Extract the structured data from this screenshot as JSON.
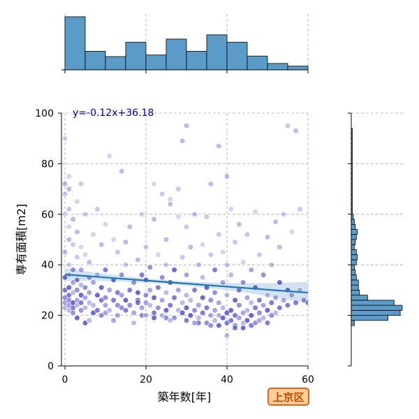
{
  "chart_data": {
    "type": "scatter",
    "title": "",
    "xlabel": "築年数[年]",
    "ylabel": "専有面積[m2]",
    "xlim": [
      0,
      60
    ],
    "ylim": [
      0,
      100
    ],
    "xticks": [
      0,
      20,
      40,
      60
    ],
    "yticks": [
      0,
      20,
      40,
      60,
      80,
      100
    ],
    "grid": true,
    "regression": {
      "slope": -0.12,
      "intercept": 36.18,
      "label": "y=-0.12x+36.18"
    },
    "badge": "上京区",
    "colors": {
      "points": "#3a3ac8",
      "regression": "#1f77b4",
      "ci_band": "#c6dbef",
      "hist": "#5b9bc8"
    },
    "x_hist": {
      "bin_edges": [
        0,
        5,
        10,
        15,
        20,
        25,
        30,
        35,
        40,
        45,
        50,
        55,
        60
      ],
      "counts": [
        100,
        35,
        25,
        52,
        28,
        58,
        35,
        66,
        52,
        26,
        12,
        7
      ]
    },
    "y_hist": {
      "bin_edges": [
        16,
        18,
        20,
        22,
        24,
        26,
        28,
        30,
        32,
        34,
        36,
        38,
        40,
        42,
        44,
        46,
        48,
        50,
        52,
        54,
        56,
        58,
        60,
        62,
        64,
        66,
        68,
        70,
        72,
        74,
        76,
        78,
        80,
        82,
        84,
        86,
        88,
        90,
        92,
        94
      ],
      "counts": [
        3,
        36,
        48,
        50,
        42,
        16,
        8,
        7,
        7,
        5,
        4,
        3,
        5,
        6,
        5,
        3,
        4,
        5,
        6,
        4,
        3,
        2,
        1,
        1,
        1,
        1,
        1,
        1,
        1,
        1,
        1,
        1,
        1,
        1,
        1,
        1,
        1,
        1,
        1
      ]
    },
    "points": [
      [
        0,
        23
      ],
      [
        0,
        25
      ],
      [
        0,
        27
      ],
      [
        0,
        30
      ],
      [
        0,
        35
      ],
      [
        0,
        45
      ],
      [
        0,
        60
      ],
      [
        0,
        68
      ],
      [
        0,
        72
      ],
      [
        0,
        90
      ],
      [
        1,
        22
      ],
      [
        1,
        24
      ],
      [
        1,
        26
      ],
      [
        1,
        28
      ],
      [
        1,
        31
      ],
      [
        1,
        36
      ],
      [
        1,
        40
      ],
      [
        1,
        50
      ],
      [
        1,
        55
      ],
      [
        1,
        62
      ],
      [
        1,
        70
      ],
      [
        1,
        75
      ],
      [
        2,
        21
      ],
      [
        2,
        23
      ],
      [
        2,
        25
      ],
      [
        2,
        29
      ],
      [
        2,
        33
      ],
      [
        2,
        38
      ],
      [
        2,
        48
      ],
      [
        2,
        58
      ],
      [
        3,
        24
      ],
      [
        3,
        26
      ],
      [
        3,
        30
      ],
      [
        3,
        34
      ],
      [
        3,
        43
      ],
      [
        3,
        53
      ],
      [
        3,
        65
      ],
      [
        4,
        22
      ],
      [
        4,
        25
      ],
      [
        4,
        28
      ],
      [
        4,
        32
      ],
      [
        4,
        38
      ],
      [
        4,
        47
      ],
      [
        4,
        72
      ],
      [
        5,
        17
      ],
      [
        5,
        23
      ],
      [
        5,
        27
      ],
      [
        5,
        31
      ],
      [
        5,
        44
      ],
      [
        5,
        60
      ],
      [
        6,
        25
      ],
      [
        6,
        29
      ],
      [
        6,
        35
      ],
      [
        6,
        41
      ],
      [
        7,
        21
      ],
      [
        7,
        24
      ],
      [
        7,
        33
      ],
      [
        7,
        52
      ],
      [
        8,
        22
      ],
      [
        8,
        28
      ],
      [
        8,
        36
      ],
      [
        8,
        62
      ],
      [
        9,
        20
      ],
      [
        9,
        26
      ],
      [
        9,
        31
      ],
      [
        9,
        48
      ],
      [
        10,
        24
      ],
      [
        10,
        27
      ],
      [
        10,
        38
      ],
      [
        10,
        56
      ],
      [
        11,
        22
      ],
      [
        11,
        30
      ],
      [
        11,
        83
      ],
      [
        12,
        26
      ],
      [
        12,
        34
      ],
      [
        12,
        50
      ],
      [
        13,
        20
      ],
      [
        13,
        24
      ],
      [
        13,
        29
      ],
      [
        13,
        45
      ],
      [
        14,
        77
      ],
      [
        14,
        28
      ],
      [
        14,
        36
      ],
      [
        15,
        22
      ],
      [
        15,
        26
      ],
      [
        15,
        40
      ],
      [
        15,
        49
      ],
      [
        16,
        24
      ],
      [
        16,
        30
      ],
      [
        16,
        55
      ],
      [
        17,
        17
      ],
      [
        17,
        21
      ],
      [
        17,
        33
      ],
      [
        18,
        26
      ],
      [
        18,
        29
      ],
      [
        18,
        42
      ],
      [
        19,
        23
      ],
      [
        19,
        20
      ],
      [
        19,
        36
      ],
      [
        19,
        60
      ],
      [
        20,
        20
      ],
      [
        20,
        25
      ],
      [
        20,
        28
      ],
      [
        20,
        47
      ],
      [
        20,
        34
      ],
      [
        21,
        24
      ],
      [
        21,
        30
      ],
      [
        21,
        39
      ],
      [
        22,
        21
      ],
      [
        22,
        27
      ],
      [
        22,
        58
      ],
      [
        22,
        72
      ],
      [
        23,
        23
      ],
      [
        23,
        31
      ],
      [
        23,
        44
      ],
      [
        24,
        20
      ],
      [
        24,
        26
      ],
      [
        24,
        35
      ],
      [
        24,
        68
      ],
      [
        25,
        22
      ],
      [
        25,
        29
      ],
      [
        25,
        40
      ],
      [
        25,
        50
      ],
      [
        26,
        24
      ],
      [
        26,
        33
      ],
      [
        26,
        64
      ],
      [
        26,
        66
      ],
      [
        27,
        19
      ],
      [
        27,
        27
      ],
      [
        27,
        38
      ],
      [
        28,
        22
      ],
      [
        28,
        30
      ],
      [
        28,
        59
      ],
      [
        28,
        70
      ],
      [
        29,
        21
      ],
      [
        29,
        25
      ],
      [
        29,
        43
      ],
      [
        29,
        89
      ],
      [
        30,
        18
      ],
      [
        30,
        23
      ],
      [
        30,
        28
      ],
      [
        30,
        36
      ],
      [
        30,
        55
      ],
      [
        30,
        95
      ],
      [
        31,
        20
      ],
      [
        31,
        26
      ],
      [
        31,
        47
      ],
      [
        32,
        22
      ],
      [
        32,
        30
      ],
      [
        32,
        60
      ],
      [
        33,
        19
      ],
      [
        33,
        24
      ],
      [
        33,
        40
      ],
      [
        34,
        21
      ],
      [
        34,
        27
      ],
      [
        34,
        35
      ],
      [
        34,
        48
      ],
      [
        35,
        17
      ],
      [
        35,
        23
      ],
      [
        35,
        31
      ],
      [
        35,
        59
      ],
      [
        36,
        20
      ],
      [
        36,
        26
      ],
      [
        36,
        44
      ],
      [
        36,
        72
      ],
      [
        37,
        18
      ],
      [
        37,
        22
      ],
      [
        37,
        29
      ],
      [
        37,
        38
      ],
      [
        38,
        16
      ],
      [
        38,
        20
      ],
      [
        38,
        25
      ],
      [
        38,
        52
      ],
      [
        38,
        87
      ],
      [
        39,
        19
      ],
      [
        39,
        23
      ],
      [
        39,
        33
      ],
      [
        39,
        45
      ],
      [
        40,
        17
      ],
      [
        40,
        21
      ],
      [
        40,
        28
      ],
      [
        40,
        40
      ],
      [
        40,
        75
      ],
      [
        41,
        18
      ],
      [
        41,
        22
      ],
      [
        41,
        36
      ],
      [
        41,
        62
      ],
      [
        42,
        16
      ],
      [
        42,
        20
      ],
      [
        42,
        26
      ],
      [
        42,
        49
      ],
      [
        43,
        19
      ],
      [
        43,
        24
      ],
      [
        43,
        30
      ],
      [
        43,
        56
      ],
      [
        44,
        17
      ],
      [
        44,
        21
      ],
      [
        44,
        33
      ],
      [
        44,
        41
      ],
      [
        45,
        18
      ],
      [
        45,
        22
      ],
      [
        45,
        27
      ],
      [
        45,
        52
      ],
      [
        46,
        16
      ],
      [
        46,
        20
      ],
      [
        46,
        25
      ],
      [
        46,
        38
      ],
      [
        47,
        17
      ],
      [
        47,
        23
      ],
      [
        47,
        31
      ],
      [
        47,
        61
      ],
      [
        48,
        18
      ],
      [
        48,
        21
      ],
      [
        48,
        26
      ],
      [
        48,
        44
      ],
      [
        49,
        19
      ],
      [
        49,
        24
      ],
      [
        49,
        36
      ],
      [
        50,
        17
      ],
      [
        50,
        22
      ],
      [
        50,
        28
      ],
      [
        50,
        51
      ],
      [
        51,
        20
      ],
      [
        51,
        25
      ],
      [
        51,
        40
      ],
      [
        52,
        21
      ],
      [
        52,
        27
      ],
      [
        52,
        57
      ],
      [
        53,
        23
      ],
      [
        53,
        33
      ],
      [
        53,
        47
      ],
      [
        54,
        26
      ],
      [
        54,
        60
      ],
      [
        55,
        24
      ],
      [
        55,
        30
      ],
      [
        55,
        95
      ],
      [
        56,
        28
      ],
      [
        56,
        53
      ],
      [
        57,
        25
      ],
      [
        57,
        93
      ],
      [
        58,
        30
      ],
      [
        58,
        62
      ],
      [
        59,
        26
      ],
      [
        60,
        25
      ],
      [
        3,
        19
      ],
      [
        6,
        18
      ],
      [
        12,
        18
      ],
      [
        25,
        19
      ],
      [
        33,
        17
      ],
      [
        44,
        15
      ],
      [
        40,
        12
      ],
      [
        10,
        21
      ],
      [
        14,
        23
      ],
      [
        18,
        25
      ],
      [
        22,
        19
      ],
      [
        26,
        18
      ],
      [
        32,
        17
      ],
      [
        36,
        16
      ],
      [
        42,
        15
      ]
    ]
  }
}
